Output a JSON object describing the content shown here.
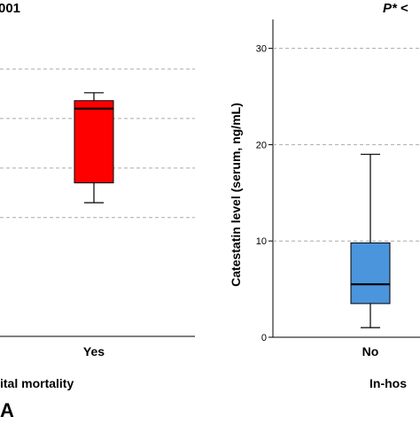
{
  "chart_data": [
    {
      "type": "box",
      "title": "001",
      "xlabel": "ital mortality",
      "ylabel": "",
      "categories": [
        "Yes"
      ],
      "boxes": [
        {
          "category": "Yes",
          "min": 11.5,
          "q1": 13.5,
          "median": 21.0,
          "q3": 21.8,
          "max": 22.6,
          "color": "#ff0000"
        }
      ],
      "ylim": [
        -2,
        30
      ],
      "gridlines": [
        10,
        15,
        20,
        25
      ],
      "grid": true
    },
    {
      "type": "box",
      "title": "P* <",
      "xlabel": "In-hos",
      "ylabel": "Catestatin level (serum, ng/mL)",
      "categories": [
        "No"
      ],
      "yticks": [
        0,
        10,
        20,
        30
      ],
      "boxes": [
        {
          "category": "No",
          "min": 1.0,
          "q1": 3.5,
          "median": 5.5,
          "q3": 9.8,
          "max": 19.0,
          "color": "#4a95dc"
        }
      ],
      "ylim": [
        0,
        33
      ],
      "gridlines": [
        10,
        20,
        30
      ],
      "grid": true
    }
  ],
  "panel_label": "A"
}
